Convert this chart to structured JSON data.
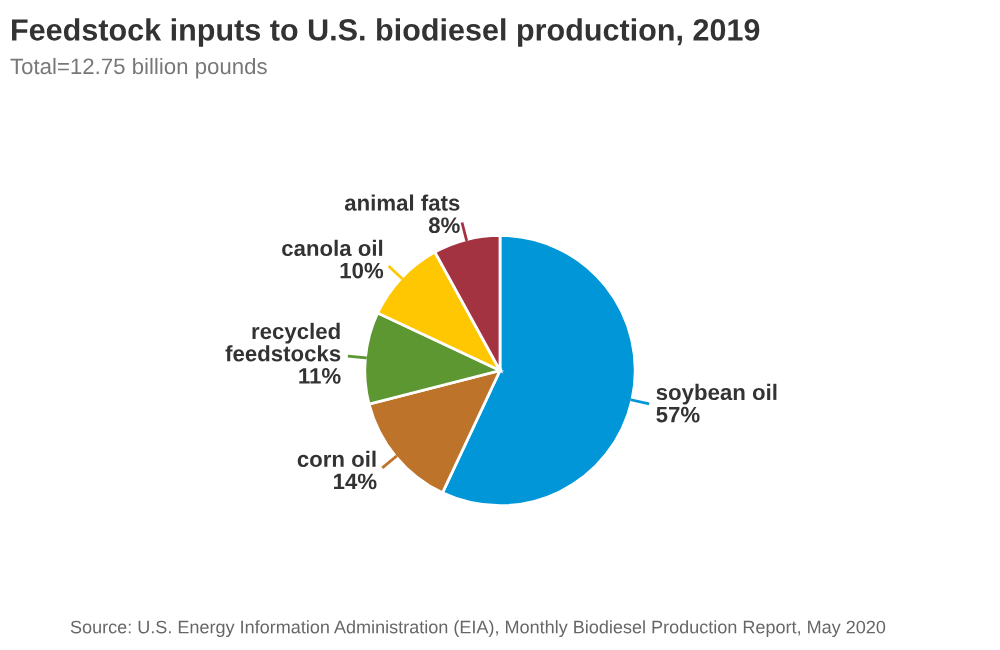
{
  "chart_data": {
    "type": "pie",
    "title": "Feedstock inputs to U.S. biodiesel production, 2019",
    "subtitle": "Total=12.75 billion pounds",
    "categories": [
      "soybean oil",
      "corn oil",
      "recycled\nfeedstocks",
      "canola oil",
      "animal fats"
    ],
    "values": [
      57,
      14,
      11,
      10,
      8
    ],
    "value_labels": [
      "57%",
      "14%",
      "11%",
      "10%",
      "8%"
    ],
    "colors": [
      "#0096d7",
      "#bd732a",
      "#5d9732",
      "#ffc702",
      "#a33340"
    ],
    "legend": false,
    "annotations": [
      "Source: U.S. Energy Information Administration (EIA), Monthly Biodiesel Production Report, May 2020"
    ]
  }
}
